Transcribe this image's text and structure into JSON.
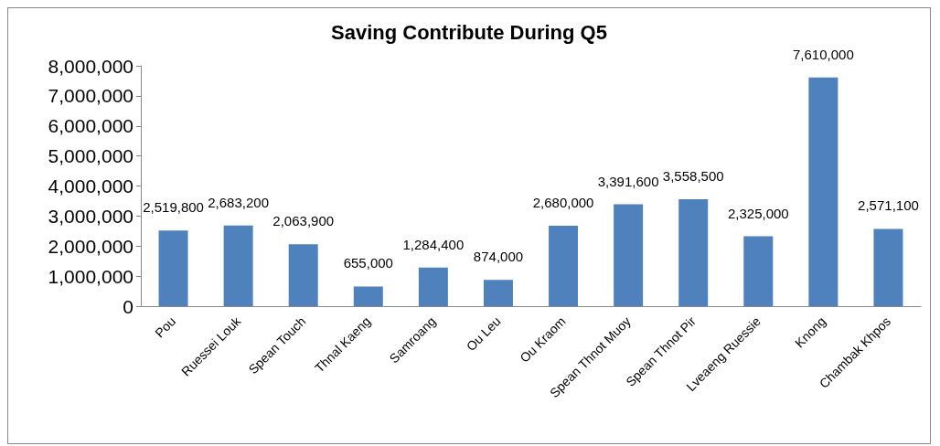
{
  "chart_data": {
    "type": "bar",
    "title": "Saving Contribute During Q5",
    "categories": [
      "Pou",
      "Ruessei Louk",
      "Spean Touch",
      "Thnal Kaeng",
      "Samroang",
      "Ou Leu",
      "Ou Kraom",
      "Spean Thnot Muoy",
      "Spean Thnot Pir",
      "Lveaeng Ruessie",
      "Knong",
      "Chambak Khpos"
    ],
    "values": [
      2519800,
      2683200,
      2063900,
      655000,
      1284400,
      874000,
      2680000,
      3391600,
      3558500,
      2325000,
      7610000,
      2571100
    ],
    "value_labels": [
      "2,519,800",
      "2,683,200",
      "2,063,900",
      "655,000",
      "1,284,400",
      "874,000",
      "2,680,000",
      "3,391,600",
      "3,558,500",
      "2,325,000",
      "7,610,000",
      "2,571,100"
    ],
    "color": "#4f81bd",
    "grid": false,
    "ylim": [
      0,
      8000000
    ],
    "yticks": [
      0,
      {
        "value": 1000000,
        "label": "1,000,000"
      },
      {
        "value": 2000000,
        "label": "2,000,000"
      },
      {
        "value": 3000000,
        "label": "3,000,000"
      },
      {
        "value": 4000000,
        "label": "4,000,000"
      },
      {
        "value": 5000000,
        "label": "5,000,000"
      },
      {
        "value": 6000000,
        "label": "6,000,000"
      },
      {
        "value": 7000000,
        "label": "7,000,000"
      },
      {
        "value": 8000000,
        "label": "8,000,000"
      }
    ]
  }
}
